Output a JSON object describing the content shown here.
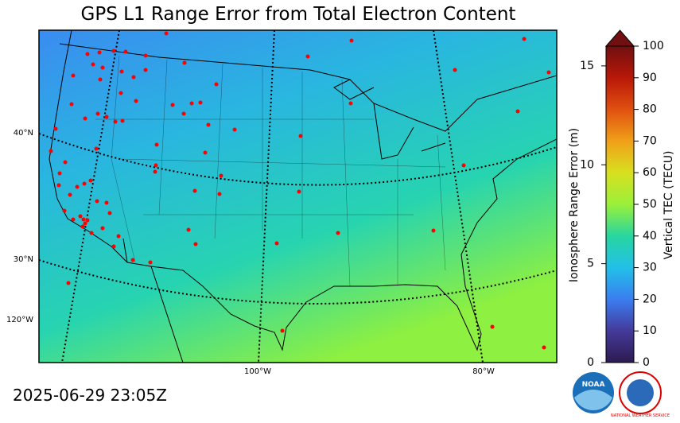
{
  "title": "GPS L1 Range Error from Total Electron Content",
  "timestamp": "2025-06-29 23:05Z",
  "map": {
    "lat_labels": [
      "40°N",
      "30°N"
    ],
    "lon_labels": [
      "120°W",
      "100°W",
      "80°W"
    ]
  },
  "colorbar": {
    "left_label": "Ionosphere Range Error (m)",
    "left_lim": [
      0,
      16
    ],
    "left_ticks": [
      0,
      5,
      10,
      15
    ],
    "right_label": "Vertical TEC (TECU)",
    "right_lim": [
      0,
      100
    ],
    "right_ticks": [
      0,
      10,
      20,
      30,
      40,
      50,
      60,
      70,
      80,
      90,
      100
    ]
  },
  "logos": {
    "noaa": "NOAA",
    "nws": "NATIONAL WEATHER SERVICE"
  }
}
